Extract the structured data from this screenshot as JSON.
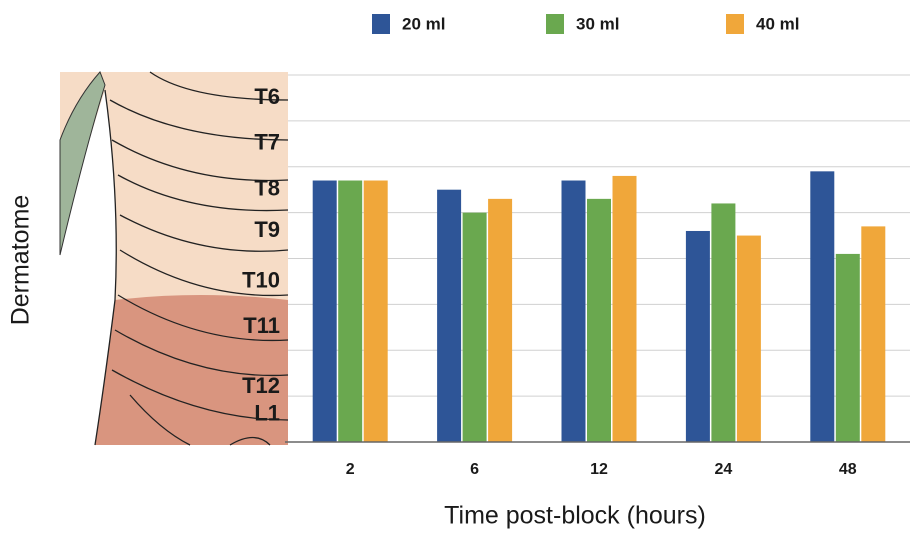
{
  "chart_data": {
    "type": "bar",
    "x_label": "Time post-block (hours)",
    "y_label": "Dermatome",
    "categories": [
      "2",
      "6",
      "12",
      "24",
      "48"
    ],
    "series": [
      {
        "name": "20 ml",
        "color": "#2e5597",
        "values": [
          5.7,
          5.5,
          5.7,
          4.6,
          5.9
        ]
      },
      {
        "name": "30 ml",
        "color": "#6aa84f",
        "values": [
          5.7,
          5.0,
          5.3,
          5.2,
          4.1
        ]
      },
      {
        "name": "40 ml",
        "color": "#f0a73a",
        "values": [
          5.7,
          5.3,
          5.8,
          4.5,
          4.7
        ]
      }
    ],
    "ylim": [
      0,
      8
    ],
    "yticks": [
      {
        "value": 7.5,
        "label": "T6"
      },
      {
        "value": 6.5,
        "label": "T7"
      },
      {
        "value": 5.5,
        "label": "T8"
      },
      {
        "value": 4.6,
        "label": "T9"
      },
      {
        "value": 3.5,
        "label": "T10"
      },
      {
        "value": 2.5,
        "label": "T11"
      },
      {
        "value": 1.2,
        "label": "T12"
      },
      {
        "value": 0.6,
        "label": "L1"
      }
    ],
    "ygrid": [
      1,
      2,
      3,
      4,
      5,
      6,
      7,
      8
    ],
    "legend": "top"
  }
}
